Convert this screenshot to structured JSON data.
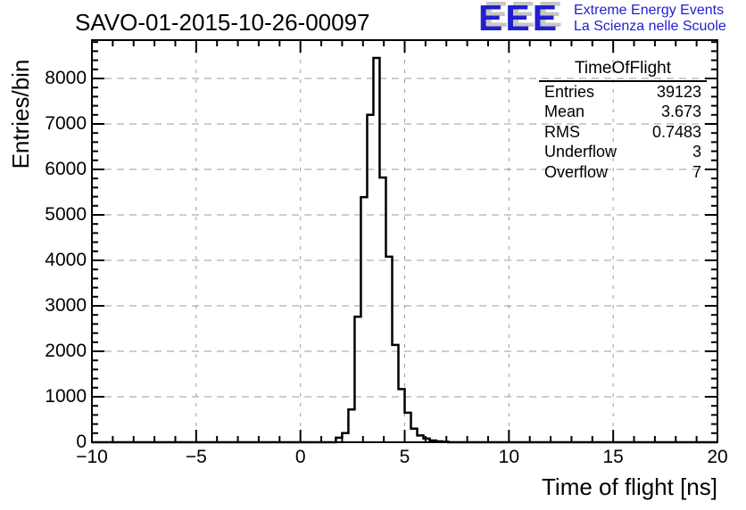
{
  "header": {
    "title": "SAVO-01-2015-10-26-00097",
    "logo": {
      "acronym": "EEE",
      "line1": "Extreme Energy Events",
      "line2": "La Scienza nelle Scuole",
      "color": "#2020cf",
      "shadow_color": "#c6c6c6"
    }
  },
  "stats_box": {
    "title": "TimeOfFlight",
    "rows": [
      {
        "label": "Entries",
        "value": "39123"
      },
      {
        "label": "Mean",
        "value": "3.673"
      },
      {
        "label": "RMS",
        "value": "0.7483"
      },
      {
        "label": "Underflow",
        "value": "3"
      },
      {
        "label": "Overflow",
        "value": "7"
      }
    ]
  },
  "chart_data": {
    "type": "bar",
    "subtype": "histogram-step-outline",
    "title": "SAVO-01-2015-10-26-00097",
    "xlabel": "Time of flight [ns]",
    "ylabel": "Entries/bin",
    "xlim": [
      -10,
      20
    ],
    "ylim": [
      0,
      8843
    ],
    "x_major_ticks": [
      -10,
      -5,
      0,
      5,
      10,
      15,
      20
    ],
    "x_tick_labels": [
      "−10",
      "−5",
      "0",
      "5",
      "10",
      "15",
      "20"
    ],
    "x_minor_step": 1,
    "y_major_step": 1000,
    "y_minor_step": 200,
    "grid": true,
    "grid_color": "#9b9b9b",
    "line_color": "#000000",
    "histogram": {
      "bin_start": 1.7,
      "bin_width": 0.3,
      "counts": [
        100,
        200,
        720,
        2760,
        5390,
        7200,
        8450,
        5820,
        4080,
        2140,
        1170,
        650,
        300,
        150,
        80,
        40,
        20,
        10
      ]
    }
  }
}
